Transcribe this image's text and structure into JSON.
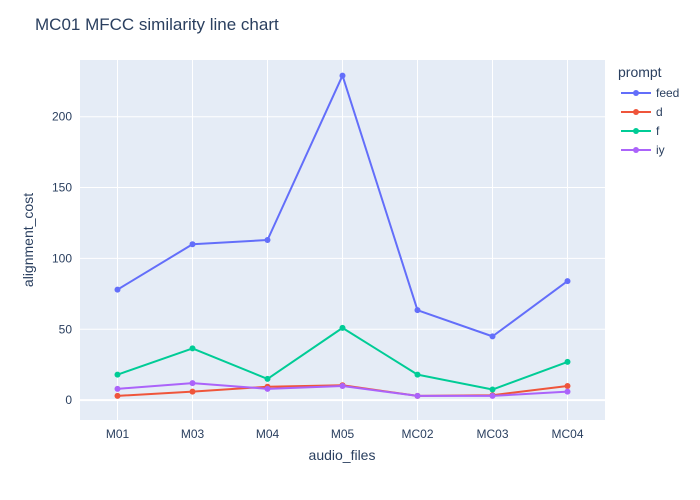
{
  "chart_data": {
    "type": "line",
    "title": "MC01 MFCC similarity line chart",
    "xlabel": "audio_files",
    "ylabel": "alignment_cost",
    "categories": [
      "M01",
      "M03",
      "M04",
      "M05",
      "MC02",
      "MC03",
      "MC04"
    ],
    "ylim": [
      -14,
      240
    ],
    "yticks": [
      0,
      50,
      100,
      150,
      200
    ],
    "grid": true,
    "legend": {
      "title": "prompt",
      "placement": "right"
    },
    "series": [
      {
        "name": "feed",
        "color": "#636efa",
        "values": [
          78,
          110,
          113,
          229,
          63.5,
          45,
          84
        ]
      },
      {
        "name": "d",
        "color": "#ef553b",
        "values": [
          3,
          6,
          9.5,
          10.5,
          3,
          3.5,
          10
        ]
      },
      {
        "name": "f",
        "color": "#00cc96",
        "values": [
          18,
          36.5,
          15,
          51,
          18,
          7.5,
          27
        ]
      },
      {
        "name": "iy",
        "color": "#ab63fa",
        "values": [
          8,
          12,
          8,
          10,
          3,
          3,
          6
        ]
      }
    ]
  }
}
